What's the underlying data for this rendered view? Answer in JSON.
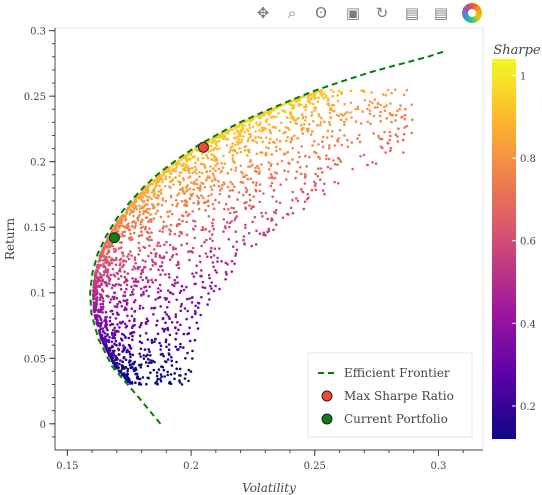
{
  "toolbar": {
    "tools": [
      {
        "name": "pan-tool-icon",
        "glyph": "✥",
        "active": true
      },
      {
        "name": "box-zoom-tool-icon",
        "glyph": "⌕",
        "active": false
      },
      {
        "name": "lasso-tool-icon",
        "glyph": "ʘ",
        "active": false
      },
      {
        "name": "save-tool-icon",
        "glyph": "▣",
        "active": false
      },
      {
        "name": "reset-tool-icon",
        "glyph": "↻",
        "active": false
      },
      {
        "name": "hover-tool-icon",
        "glyph": "▤",
        "active": true
      },
      {
        "name": "hover-tool-2-icon",
        "glyph": "▤",
        "active": true
      },
      {
        "name": "bokeh-logo-icon",
        "glyph": "",
        "active": false
      }
    ]
  },
  "chart_data": {
    "type": "scatter",
    "title": "",
    "xlabel": "Volatility",
    "ylabel": "Return",
    "xlim": [
      0.145,
      0.318
    ],
    "ylim": [
      -0.02,
      0.302
    ],
    "xticks": [
      0.15,
      0.2,
      0.25,
      0.3
    ],
    "yticks": [
      0,
      0.05,
      0.1,
      0.15,
      0.2,
      0.25,
      0.3
    ],
    "frontier": {
      "name": "Efficient Frontier",
      "color": "#008000",
      "x": [
        0.1876,
        0.178,
        0.168,
        0.1625,
        0.1597,
        0.1592,
        0.1601,
        0.1623,
        0.1659,
        0.1701,
        0.1752,
        0.181,
        0.1875,
        0.1946,
        0.2024,
        0.2108,
        0.2197,
        0.2292,
        0.2392,
        0.2497,
        0.2606,
        0.2719,
        0.2836,
        0.2957,
        0.302
      ],
      "y": [
        0.0,
        0.022,
        0.044,
        0.065,
        0.084,
        0.1,
        0.115,
        0.13,
        0.144,
        0.157,
        0.169,
        0.181,
        0.192,
        0.202,
        0.212,
        0.221,
        0.23,
        0.238,
        0.246,
        0.254,
        0.261,
        0.268,
        0.274,
        0.28,
        0.284
      ]
    },
    "max_sharpe": {
      "name": "Max Sharpe Ratio",
      "x": 0.205,
      "y": 0.211,
      "color": "#ef4a30"
    },
    "current": {
      "name": "Current Portfolio",
      "x": 0.169,
      "y": 0.142,
      "color": "#0c7d1a"
    },
    "colorbar": {
      "title": "Sharpe",
      "range": [
        0.12,
        1.04
      ],
      "ticks": [
        0.2,
        0.4,
        0.6,
        0.8,
        1
      ],
      "palette": [
        "#0d0887",
        "#5c01a6",
        "#9c179e",
        "#cc4778",
        "#ed7953",
        "#fdb42f",
        "#f0f921"
      ]
    },
    "legend": {
      "position": "bottom-right"
    },
    "grid": false
  }
}
